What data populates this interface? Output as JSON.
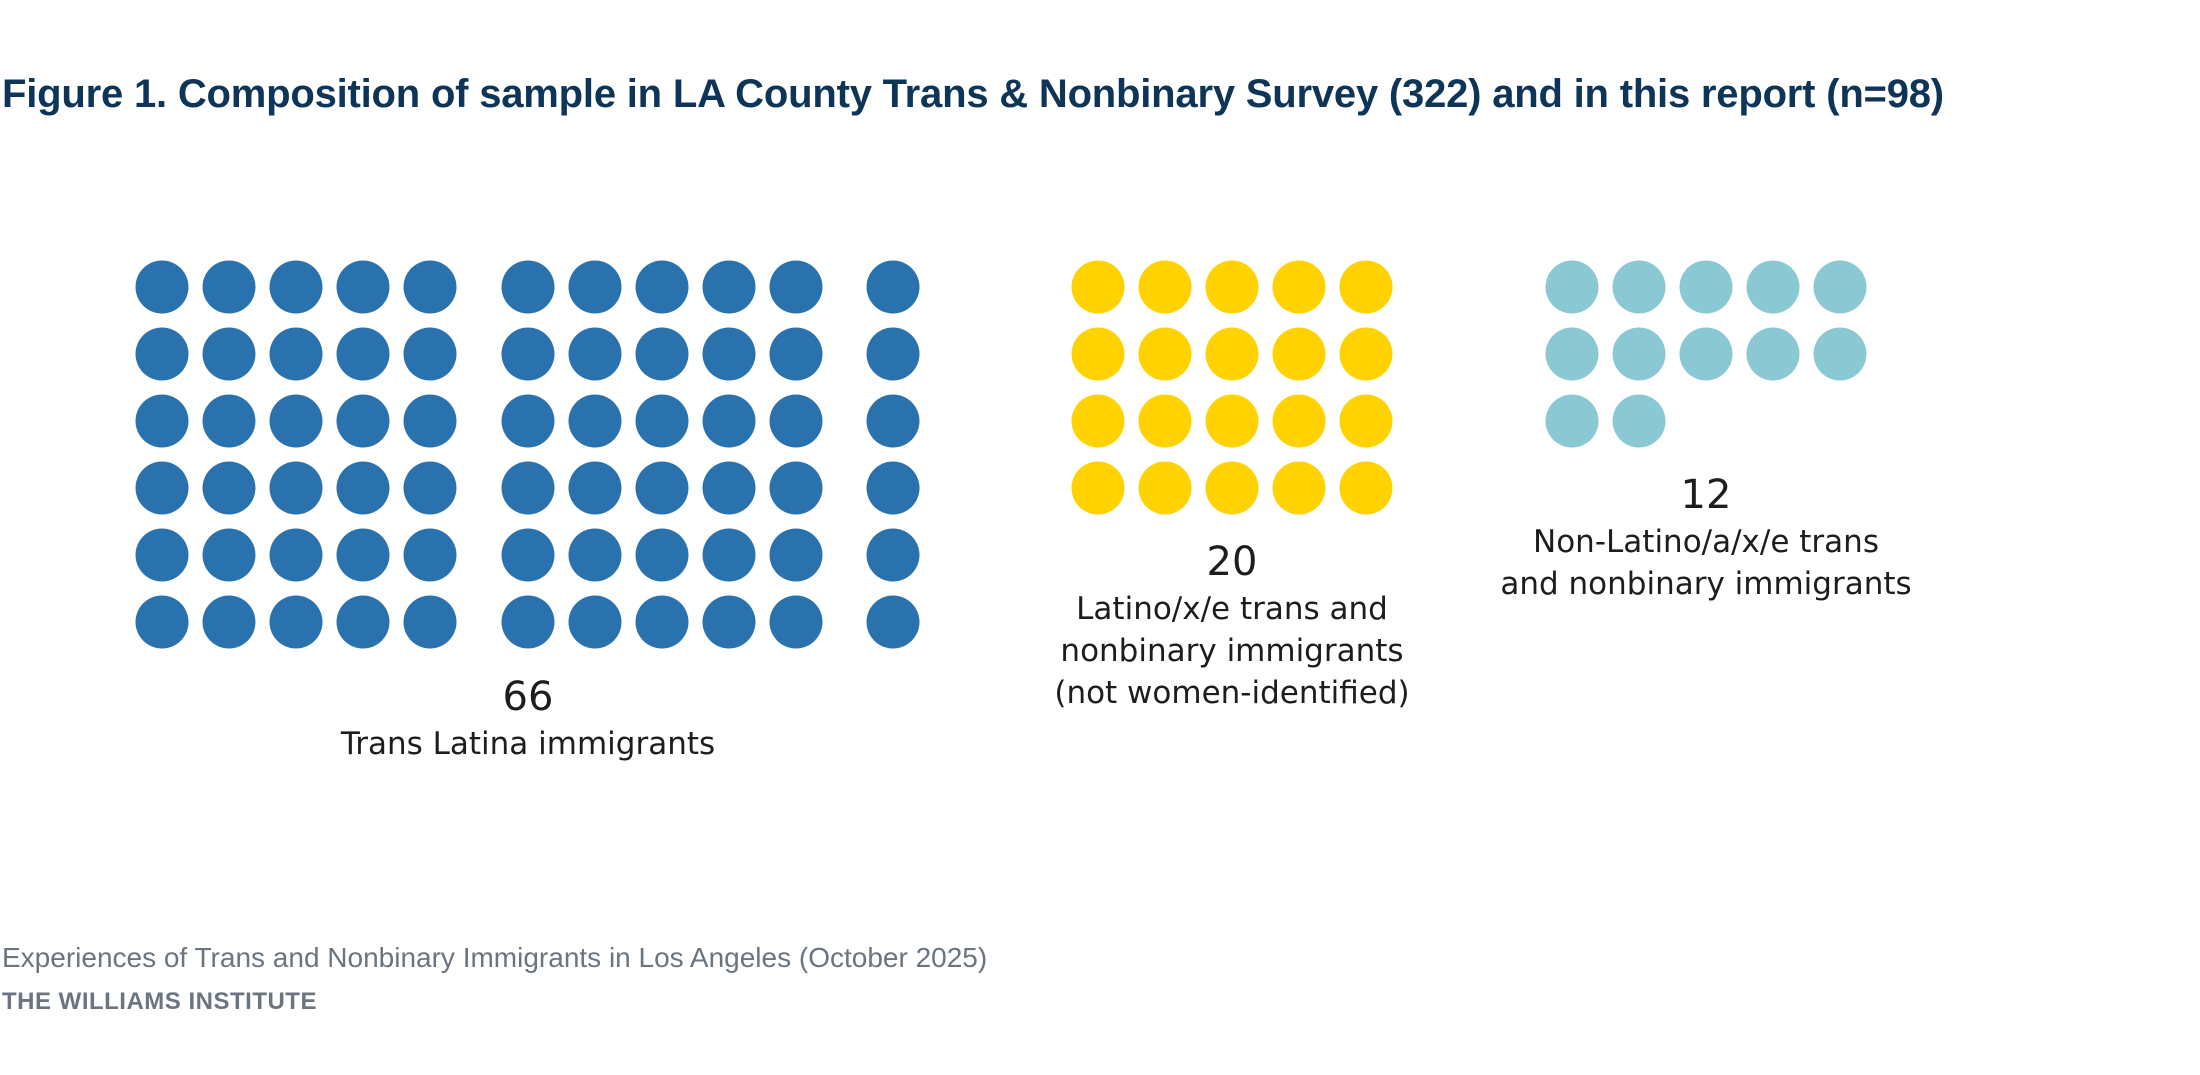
{
  "title": "Figure 1. Composition of sample in LA County Trans & Nonbinary Survey (322) and in this report (n=98)",
  "footer": {
    "source": "Experiences of Trans and Nonbinary Immigrants in Los Angeles (October 2025)",
    "org": "THE WILLIAMS INSTITUTE"
  },
  "chart_data": {
    "type": "waffle",
    "title": "Figure 1. Composition of sample in LA County Trans & Nonbinary Survey (322) and in this report (n=98)",
    "total": 98,
    "groups": [
      {
        "name": "Trans Latina immigrants",
        "count": 66,
        "count_label": "66",
        "label_lines": [
          "Trans Latina immigrants"
        ],
        "color": "#2a72ad"
      },
      {
        "name": "Latino/x/e trans and nonbinary immigrants (not women-identified)",
        "count": 20,
        "count_label": "20",
        "label_lines": [
          "Latino/x/e trans and",
          "nonbinary immigrants",
          "(not women-identified)"
        ],
        "color": "#ffd200"
      },
      {
        "name": "Non-Latino/a/x/e trans and nonbinary immigrants",
        "count": 12,
        "count_label": "12",
        "label_lines": [
          "Non-Latino/a/x/e trans",
          "and nonbinary immigrants"
        ],
        "color": "#8ac9d3"
      }
    ]
  }
}
